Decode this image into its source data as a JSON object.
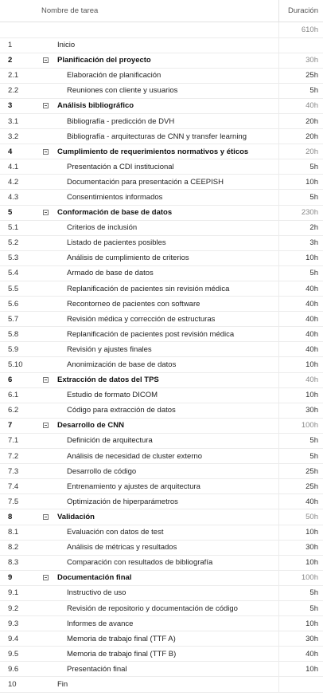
{
  "header": {
    "name_label": "Nombre de tarea",
    "duration_label": "Duración"
  },
  "total": {
    "duration": "610h"
  },
  "rows": [
    {
      "id": "1",
      "name": "Inicio",
      "dur": "",
      "type": "milestone"
    },
    {
      "id": "2",
      "name": "Planificación del proyecto",
      "dur": "30h",
      "type": "summary"
    },
    {
      "id": "2.1",
      "name": "Elaboración de planificación",
      "dur": "25h",
      "type": "task"
    },
    {
      "id": "2.2",
      "name": "Reuniones con cliente y usuarios",
      "dur": "5h",
      "type": "task"
    },
    {
      "id": "3",
      "name": "Análisis bibliográfico",
      "dur": "40h",
      "type": "summary"
    },
    {
      "id": "3.1",
      "name": "Bibliografía - predicción de DVH",
      "dur": "20h",
      "type": "task"
    },
    {
      "id": "3.2",
      "name": "Bibliografía - arquitecturas de CNN y transfer learning",
      "dur": "20h",
      "type": "task"
    },
    {
      "id": "4",
      "name": "Cumplimiento de requerimientos normativos y éticos",
      "dur": "20h",
      "type": "summary"
    },
    {
      "id": "4.1",
      "name": "Presentación a CDI institucional",
      "dur": "5h",
      "type": "task"
    },
    {
      "id": "4.2",
      "name": "Documentación para presentación a CEEPISH",
      "dur": "10h",
      "type": "task"
    },
    {
      "id": "4.3",
      "name": "Consentimientos informados",
      "dur": "5h",
      "type": "task"
    },
    {
      "id": "5",
      "name": "Conformación de base de datos",
      "dur": "230h",
      "type": "summary"
    },
    {
      "id": "5.1",
      "name": "Criterios de inclusión",
      "dur": "2h",
      "type": "task"
    },
    {
      "id": "5.2",
      "name": "Listado de pacientes posibles",
      "dur": "3h",
      "type": "task"
    },
    {
      "id": "5.3",
      "name": "Análisis de cumplimiento de criterios",
      "dur": "10h",
      "type": "task"
    },
    {
      "id": "5.4",
      "name": "Armado de base de datos",
      "dur": "5h",
      "type": "task"
    },
    {
      "id": "5.5",
      "name": "Replanificación de pacientes sin revisión médica",
      "dur": "40h",
      "type": "task"
    },
    {
      "id": "5.6",
      "name": "Recontorneo de pacientes con software",
      "dur": "40h",
      "type": "task"
    },
    {
      "id": "5.7",
      "name": "Revisión médica y corrección de estructuras",
      "dur": "40h",
      "type": "task"
    },
    {
      "id": "5.8",
      "name": "Replanificación de pacientes post revisión médica",
      "dur": "40h",
      "type": "task"
    },
    {
      "id": "5.9",
      "name": "Revisión y ajustes finales",
      "dur": "40h",
      "type": "task"
    },
    {
      "id": "5.10",
      "name": "Anonimización de base de datos",
      "dur": "10h",
      "type": "task"
    },
    {
      "id": "6",
      "name": "Extracción de datos del TPS",
      "dur": "40h",
      "type": "summary"
    },
    {
      "id": "6.1",
      "name": "Estudio de formato DICOM",
      "dur": "10h",
      "type": "task"
    },
    {
      "id": "6.2",
      "name": "Código para extracción de datos",
      "dur": "30h",
      "type": "task"
    },
    {
      "id": "7",
      "name": "Desarrollo de CNN",
      "dur": "100h",
      "type": "summary"
    },
    {
      "id": "7.1",
      "name": "Definición de arquitectura",
      "dur": "5h",
      "type": "task"
    },
    {
      "id": "7.2",
      "name": "Análisis de necesidad de cluster externo",
      "dur": "5h",
      "type": "task"
    },
    {
      "id": "7.3",
      "name": "Desarrollo de código",
      "dur": "25h",
      "type": "task"
    },
    {
      "id": "7.4",
      "name": "Entrenamiento y ajustes de arquitectura",
      "dur": "25h",
      "type": "task"
    },
    {
      "id": "7.5",
      "name": "Optimización de hiperparámetros",
      "dur": "40h",
      "type": "task"
    },
    {
      "id": "8",
      "name": "Validación",
      "dur": "50h",
      "type": "summary"
    },
    {
      "id": "8.1",
      "name": "Evaluación con datos de test",
      "dur": "10h",
      "type": "task"
    },
    {
      "id": "8.2",
      "name": "Análisis de métricas y resultados",
      "dur": "30h",
      "type": "task"
    },
    {
      "id": "8.3",
      "name": "Comparación con resultados de bibliografía",
      "dur": "10h",
      "type": "task"
    },
    {
      "id": "9",
      "name": "Documentación final",
      "dur": "100h",
      "type": "summary"
    },
    {
      "id": "9.1",
      "name": "Instructivo de uso",
      "dur": "5h",
      "type": "task"
    },
    {
      "id": "9.2",
      "name": "Revisión de repositorio y documentación de código",
      "dur": "5h",
      "type": "task"
    },
    {
      "id": "9.3",
      "name": "Informes de avance",
      "dur": "10h",
      "type": "task"
    },
    {
      "id": "9.4",
      "name": "Memoria de trabajo final (TTF A)",
      "dur": "30h",
      "type": "task"
    },
    {
      "id": "9.5",
      "name": "Memoria de trabajo final (TTF B)",
      "dur": "40h",
      "type": "task"
    },
    {
      "id": "9.6",
      "name": "Presentación final",
      "dur": "10h",
      "type": "task"
    },
    {
      "id": "10",
      "name": "Fin",
      "dur": "",
      "type": "milestone"
    }
  ]
}
